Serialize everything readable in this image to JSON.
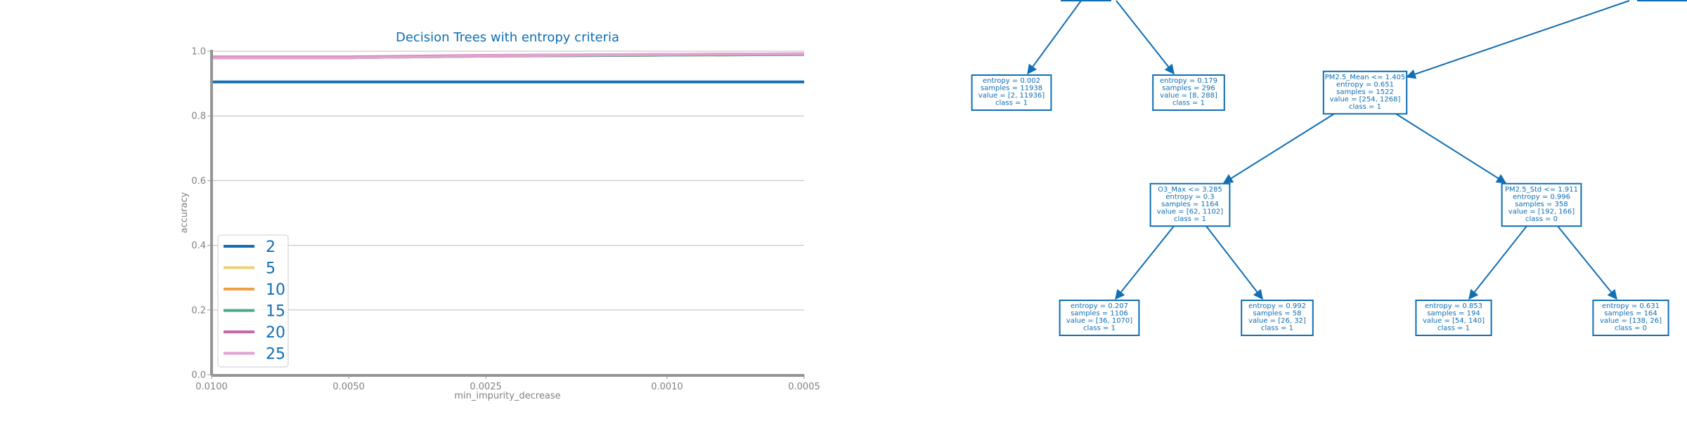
{
  "colors": {
    "accent": "#0f6eb4",
    "text_gray": "#808080",
    "grid": "#bdbdbd",
    "axis": "#959595"
  },
  "chart_data": [
    {
      "type": "line",
      "title": "Decision Trees with entropy criteria",
      "xlabel": "min_impurity_decrease",
      "ylabel": "accuracy",
      "x_scale": "log-reversed",
      "x_ticks": [
        0.01,
        0.005,
        0.0025,
        0.001,
        0.0005
      ],
      "x_tick_labels": [
        "0.0100",
        "0.0050",
        "0.0025",
        "0.0010",
        "0.0005"
      ],
      "xlim": [
        0.01,
        0.0005
      ],
      "ylim": [
        0.0,
        1.0
      ],
      "y_ticks": [
        0.0,
        0.2,
        0.4,
        0.6,
        0.8,
        1.0
      ],
      "y_tick_labels": [
        "0.0",
        "0.2",
        "0.4",
        "0.6",
        "0.8",
        "1.0"
      ],
      "grid": "horizontal",
      "legend_position": "lower-left",
      "x": [
        0.01,
        0.0075,
        0.005,
        0.0025,
        0.001,
        0.0005
      ],
      "series": [
        {
          "name": "2",
          "color": "#0f6eb4",
          "values": [
            0.905,
            0.905,
            0.905,
            0.905,
            0.905,
            0.905
          ]
        },
        {
          "name": "5",
          "color": "#e8d176",
          "values": [
            0.98,
            0.98,
            0.98,
            0.985,
            0.988,
            0.99
          ]
        },
        {
          "name": "10",
          "color": "#f0a040",
          "values": [
            0.98,
            0.98,
            0.98,
            0.985,
            0.988,
            0.99
          ]
        },
        {
          "name": "15",
          "color": "#4aa889",
          "values": [
            0.98,
            0.98,
            0.98,
            0.985,
            0.988,
            0.99
          ]
        },
        {
          "name": "20",
          "color": "#c865a6",
          "values": [
            0.982,
            0.982,
            0.982,
            0.987,
            0.99,
            0.992
          ]
        },
        {
          "name": "25",
          "color": "#e2a1d2",
          "values": [
            0.98,
            0.98,
            0.98,
            0.986,
            0.99,
            0.992
          ]
        }
      ]
    }
  ],
  "tree": {
    "nodes": [
      {
        "id": "l1",
        "lines": [
          "entropy = 0.002",
          "samples = 11938",
          "value = [2, 11936]",
          "class = 1"
        ]
      },
      {
        "id": "l2",
        "lines": [
          "entropy = 0.179",
          "samples = 296",
          "value = [8, 288]",
          "class = 1"
        ]
      },
      {
        "id": "n3",
        "lines": [
          "PM2.5_Mean <= 1.405",
          "entropy = 0.651",
          "samples = 1522",
          "value = [254, 1268]",
          "class = 1"
        ]
      },
      {
        "id": "n4",
        "lines": [
          "O3_Max <= 3.285",
          "entropy = 0.3",
          "samples = 1164",
          "value = [62, 1102]",
          "class = 1"
        ]
      },
      {
        "id": "n5",
        "lines": [
          "PM2.5_Std <= 1.911",
          "entropy = 0.996",
          "samples = 358",
          "value = [192, 166]",
          "class = 0"
        ]
      },
      {
        "id": "l6",
        "lines": [
          "entropy = 0.207",
          "samples = 1106",
          "value = [36, 1070]",
          "class = 1"
        ]
      },
      {
        "id": "l7",
        "lines": [
          "entropy = 0.992",
          "samples = 58",
          "value = [26, 32]",
          "class = 1"
        ]
      },
      {
        "id": "l8",
        "lines": [
          "entropy = 0.853",
          "samples = 194",
          "value = [54, 140]",
          "class = 1"
        ]
      },
      {
        "id": "l9",
        "lines": [
          "entropy = 0.631",
          "samples = 164",
          "value = [138, 26]",
          "class = 0"
        ]
      }
    ]
  }
}
